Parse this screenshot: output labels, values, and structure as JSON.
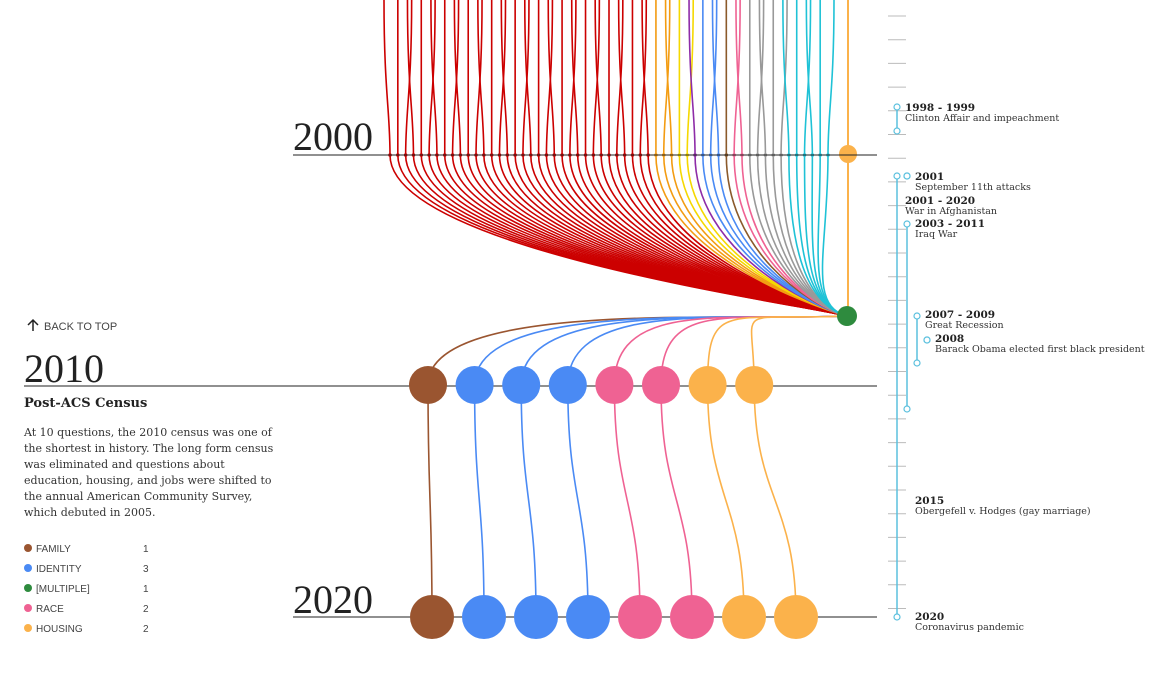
{
  "back_to_top": "BACK TO TOP",
  "years": [
    "2000",
    "2010",
    "2020"
  ],
  "section": {
    "title": "Post-ACS Census",
    "body": "At 10 questions, the 2010 census was one of the shortest in history. The long form census was eliminated and questions about education, housing, and jobs were shifted to the annual American Community Survey, which debuted in 2005."
  },
  "legend": [
    {
      "label": "FAMILY",
      "count": 1,
      "color": "#9a5530"
    },
    {
      "label": "IDENTITY",
      "count": 3,
      "color": "#4a8af4"
    },
    {
      "label": "[MULTIPLE]",
      "count": 1,
      "color": "#2e8b3e"
    },
    {
      "label": "RACE",
      "count": 2,
      "color": "#ef6293"
    },
    {
      "label": "HOUSING",
      "count": 2,
      "color": "#fbb24b"
    }
  ],
  "timeline": [
    {
      "years": "1998 - 1999",
      "event": "Clinton Affair and impeachment"
    },
    {
      "years": "2001",
      "event": "September 11th attacks"
    },
    {
      "years": "2001 - 2020",
      "event": "War in Afghanistan"
    },
    {
      "years": "2003 - 2011",
      "event": "Iraq War"
    },
    {
      "years": "2007 - 2009",
      "event": "Great Recession"
    },
    {
      "years": "2008",
      "event": "Barack Obama elected first black president"
    },
    {
      "years": "2015",
      "event": "Obergefell v. Hodges (gay marriage)"
    },
    {
      "years": "2020",
      "event": "Coronavirus pandemic"
    }
  ]
}
